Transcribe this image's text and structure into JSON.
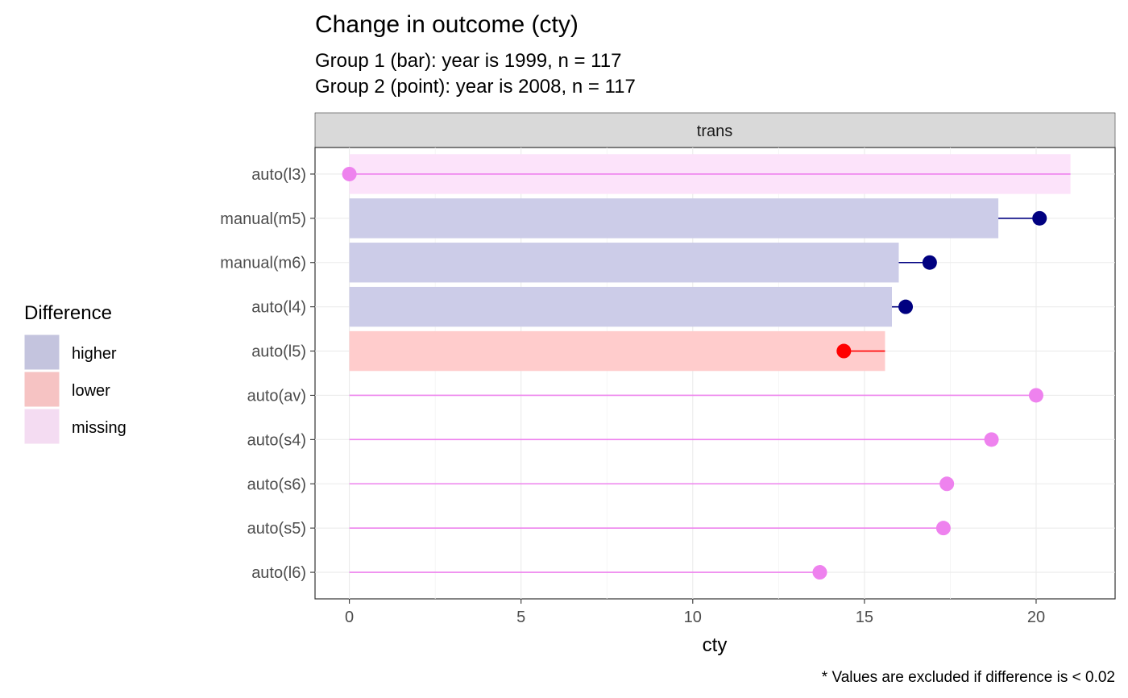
{
  "chart_data": {
    "type": "bar",
    "title": "Change in outcome (cty)",
    "subtitle_lines": [
      "Group 1 (bar): year is 1999, n = 117",
      "Group 2 (point): year is 2008, n = 117"
    ],
    "facet_label": "trans",
    "xlabel": "cty",
    "ylabel": "",
    "xlim": [
      -1,
      22.3
    ],
    "xticks": [
      0,
      5,
      10,
      15,
      20
    ],
    "grid": true,
    "caption": "* Values are excluded if difference is < 0.02",
    "categories": [
      "auto(l3)",
      "manual(m5)",
      "manual(m6)",
      "auto(l4)",
      "auto(l5)",
      "auto(av)",
      "auto(s4)",
      "auto(s6)",
      "auto(s5)",
      "auto(l6)"
    ],
    "bar_values": [
      21,
      18.9,
      16,
      15.8,
      15.6,
      null,
      null,
      null,
      null,
      null
    ],
    "point_values": [
      0,
      20.1,
      16.9,
      16.2,
      14.4,
      20,
      18.7,
      17.4,
      17.3,
      13.7
    ],
    "difference": [
      "missing",
      "higher",
      "higher",
      "higher",
      "lower",
      "missing",
      "missing",
      "missing",
      "missing",
      "missing"
    ],
    "legend": {
      "title": "Difference",
      "placement": "left",
      "items": [
        {
          "key": "higher",
          "label": "higher"
        },
        {
          "key": "lower",
          "label": "lower"
        },
        {
          "key": "missing",
          "label": "missing"
        }
      ]
    },
    "colors": {
      "higher": {
        "bar": "#ccccE8",
        "point": "#000080",
        "legend": "#c4c4de"
      },
      "lower": {
        "bar": "#ffcccc",
        "point": "#ff0000",
        "legend": "#f6c3c3"
      },
      "missing": {
        "bar": "#fce3fa",
        "point": "#ee82ee",
        "legend": "#f4dcf2"
      }
    }
  }
}
